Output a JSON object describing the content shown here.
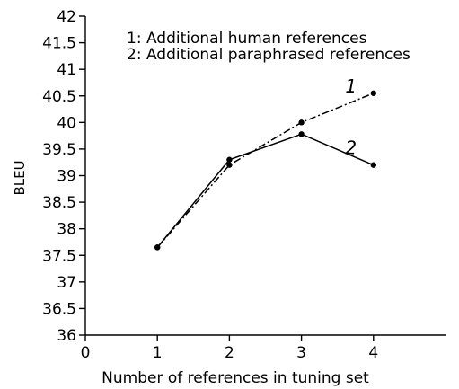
{
  "chart_data": {
    "type": "line",
    "xlabel": "Number of references in tuning set",
    "ylabel": "BLEU",
    "xlim": [
      0,
      5
    ],
    "ylim": [
      36,
      42
    ],
    "xticks": [
      0,
      1,
      2,
      3,
      4
    ],
    "yticks": [
      36,
      36.5,
      37,
      37.5,
      38,
      38.5,
      39,
      39.5,
      40,
      40.5,
      41,
      41.5,
      42
    ],
    "grid": false,
    "legend": {
      "position": "top-left",
      "entries": [
        "1: Additional human references",
        "2: Additional paraphrased references"
      ]
    },
    "series": [
      {
        "label": "1",
        "style": "dash-dot",
        "x": [
          1,
          2,
          3,
          4
        ],
        "y": [
          37.65,
          39.2,
          40.0,
          40.55
        ]
      },
      {
        "label": "2",
        "style": "solid",
        "x": [
          1,
          2,
          3,
          4
        ],
        "y": [
          37.65,
          39.3,
          39.78,
          39.2
        ]
      }
    ]
  }
}
